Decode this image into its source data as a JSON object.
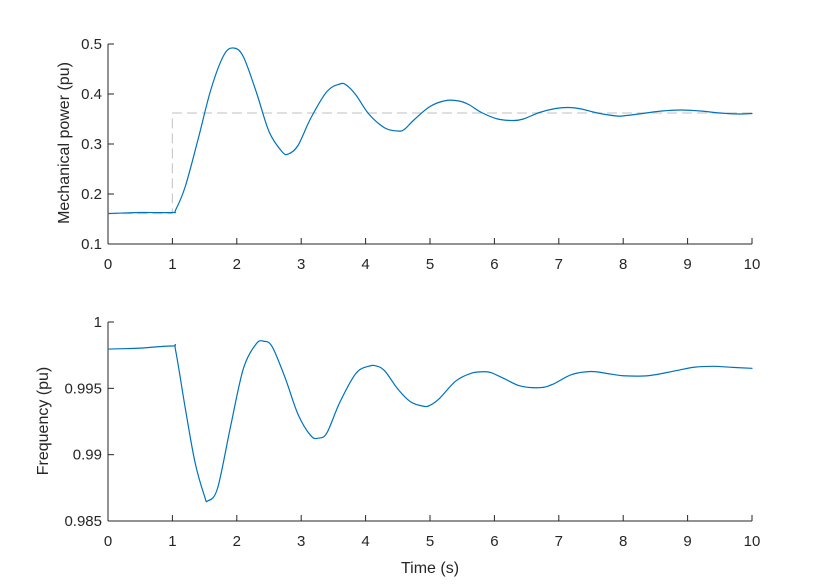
{
  "chart_data": [
    {
      "type": "line",
      "title": "",
      "xlabel": "",
      "ylabel": "Mechanical power (pu)",
      "xlim": [
        0,
        10
      ],
      "ylim": [
        0.1,
        0.5
      ],
      "xticks": [
        "0",
        "1",
        "2",
        "3",
        "4",
        "5",
        "6",
        "7",
        "8",
        "9",
        "10"
      ],
      "yticks": [
        "0.1",
        "0.2",
        "0.3",
        "0.4",
        "0.5"
      ],
      "grid": false,
      "series": [
        {
          "color": "#0072BD",
          "style": "solid",
          "x": [
            0,
            0.5,
            1.0,
            1.05,
            1.2,
            1.4,
            1.6,
            1.8,
            1.95,
            2.1,
            2.3,
            2.5,
            2.7,
            2.8,
            2.95,
            3.15,
            3.4,
            3.6,
            3.7,
            3.85,
            4.05,
            4.3,
            4.5,
            4.6,
            4.75,
            5.0,
            5.25,
            5.45,
            5.6,
            5.8,
            6.05,
            6.3,
            6.45,
            6.7,
            6.95,
            7.15,
            7.35,
            7.6,
            7.9,
            8.05,
            8.3,
            8.6,
            8.9,
            9.2,
            9.5,
            9.8,
            10.0
          ],
          "y": [
            0.161,
            0.163,
            0.163,
            0.168,
            0.215,
            0.31,
            0.41,
            0.478,
            0.492,
            0.475,
            0.405,
            0.325,
            0.285,
            0.28,
            0.297,
            0.352,
            0.405,
            0.42,
            0.418,
            0.398,
            0.36,
            0.332,
            0.326,
            0.329,
            0.348,
            0.375,
            0.387,
            0.386,
            0.379,
            0.363,
            0.35,
            0.347,
            0.35,
            0.363,
            0.371,
            0.373,
            0.37,
            0.362,
            0.356,
            0.357,
            0.361,
            0.366,
            0.368,
            0.366,
            0.362,
            0.36,
            0.361
          ]
        },
        {
          "color": "#cccccc",
          "style": "dashed",
          "x": [
            0,
            1,
            1,
            10
          ],
          "y": [
            0.161,
            0.161,
            0.362,
            0.362
          ]
        }
      ]
    },
    {
      "type": "line",
      "title": "",
      "xlabel": "Time (s)",
      "ylabel": "Frequency (pu)",
      "xlim": [
        0,
        10
      ],
      "ylim": [
        0.985,
        1.0
      ],
      "xticks": [
        "0",
        "1",
        "2",
        "3",
        "4",
        "5",
        "6",
        "7",
        "8",
        "9",
        "10"
      ],
      "yticks": [
        "0.985",
        "0.99",
        "0.995",
        "1"
      ],
      "grid": false,
      "series": [
        {
          "color": "#0072BD",
          "style": "solid",
          "x": [
            0,
            0.5,
            1.0,
            1.05,
            1.2,
            1.35,
            1.5,
            1.55,
            1.7,
            1.9,
            2.1,
            2.3,
            2.42,
            2.55,
            2.75,
            2.95,
            3.15,
            3.27,
            3.4,
            3.6,
            3.85,
            4.05,
            4.17,
            4.3,
            4.5,
            4.7,
            4.9,
            5.0,
            5.15,
            5.4,
            5.65,
            5.85,
            5.95,
            6.15,
            6.4,
            6.7,
            6.9,
            7.2,
            7.5,
            7.75,
            8.0,
            8.4,
            8.8,
            9.1,
            9.4,
            9.7,
            10.0
          ],
          "y": [
            0.99796,
            0.99803,
            0.99819,
            0.99785,
            0.9935,
            0.98945,
            0.98685,
            0.98652,
            0.98745,
            0.99205,
            0.99645,
            0.99834,
            0.99855,
            0.99813,
            0.9958,
            0.99305,
            0.99143,
            0.99125,
            0.99165,
            0.99395,
            0.99613,
            0.99667,
            0.99668,
            0.9963,
            0.99495,
            0.99398,
            0.99365,
            0.99372,
            0.99425,
            0.99555,
            0.99615,
            0.99625,
            0.99618,
            0.99574,
            0.99518,
            0.99505,
            0.99529,
            0.99604,
            0.99627,
            0.99612,
            0.99595,
            0.99596,
            0.99631,
            0.99659,
            0.99666,
            0.99658,
            0.99651
          ]
        }
      ]
    }
  ]
}
